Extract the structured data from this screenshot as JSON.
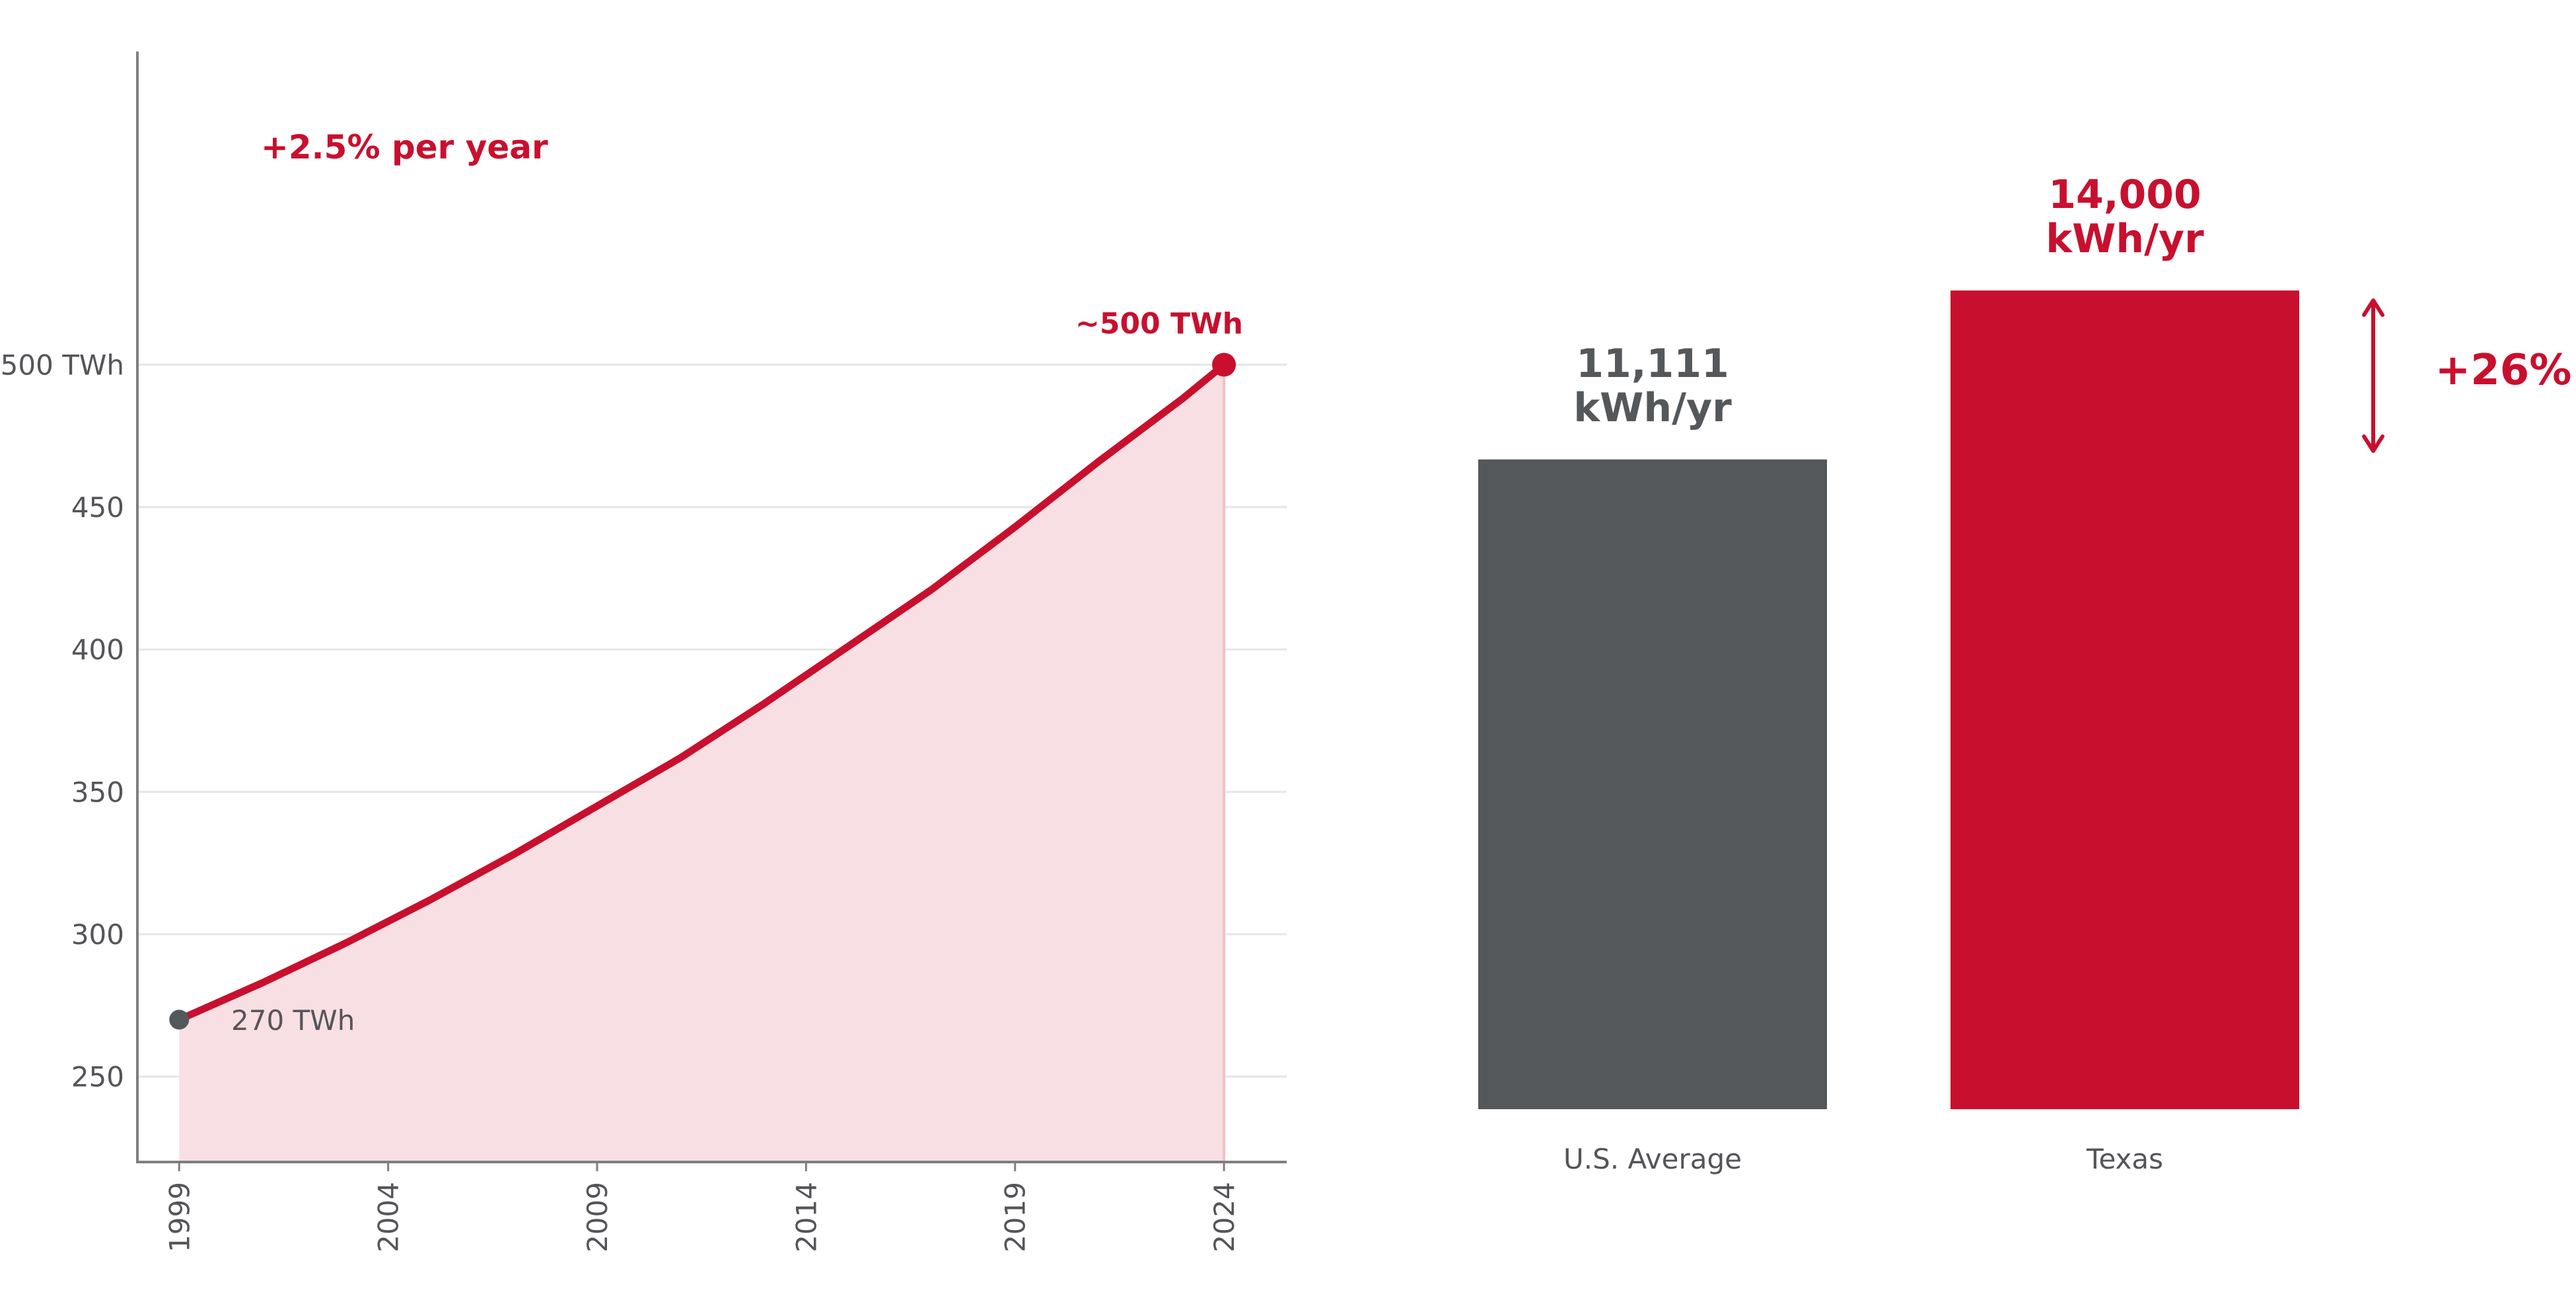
{
  "colors": {
    "accent": "#c8102e",
    "gray": "#54585a",
    "fill": "#f7dfe3",
    "tick_text": "#555559"
  },
  "chart_data": [
    {
      "type": "area",
      "x_ticks": [
        "1999",
        "2004",
        "2009",
        "2014",
        "2019",
        "2024"
      ],
      "y_ticks": [
        "250",
        "300",
        "350",
        "400",
        "450",
        "500 TWh"
      ],
      "xlim": [
        1998,
        2025.5
      ],
      "ylim": [
        220,
        610
      ],
      "grid": "y",
      "series": [
        {
          "x": [
            1999,
            2001,
            2003,
            2005,
            2007,
            2009,
            2011,
            2013,
            2015,
            2017,
            2019,
            2021,
            2023,
            2024
          ],
          "y": [
            270,
            283,
            297,
            312,
            328,
            345,
            362,
            381,
            401,
            421,
            443,
            466,
            488,
            500
          ]
        }
      ],
      "annotations": {
        "growth": "+2.5% per year",
        "start_label": "270 TWh",
        "end_label": "~500 TWh"
      }
    },
    {
      "type": "bar",
      "categories": [
        "U.S. Average",
        "Texas"
      ],
      "values": [
        11111,
        14000
      ],
      "ylim": [
        0,
        14000
      ],
      "bar_colors": [
        "#54585a",
        "#c8102e"
      ],
      "value_labels": [
        [
          "11,111",
          "kWh/yr"
        ],
        [
          "14,000",
          "kWh/yr"
        ]
      ],
      "difference_label": "+26%"
    }
  ]
}
